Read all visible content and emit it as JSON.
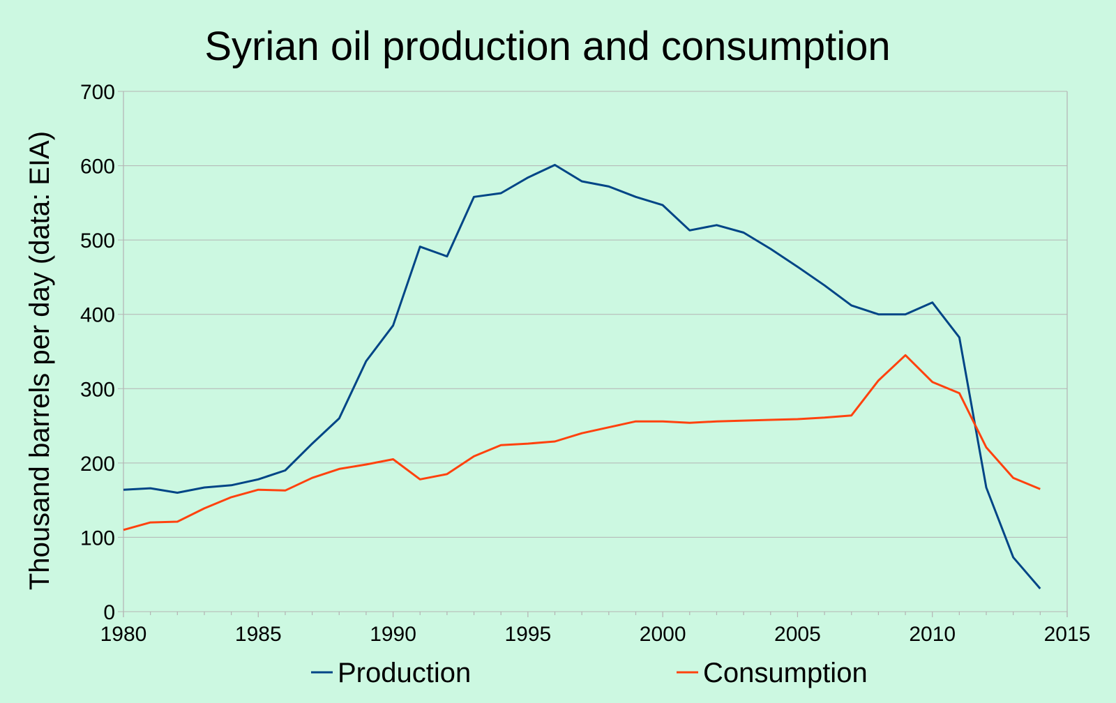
{
  "chart_data": {
    "type": "line",
    "title": "Syrian oil production and consumption",
    "xlabel": "",
    "ylabel": "Thousand barrels per day (data: EIA)",
    "xlim": [
      1980,
      2015
    ],
    "ylim": [
      0,
      700
    ],
    "x_ticks": [
      "1980",
      "1985",
      "1990",
      "1995",
      "2000",
      "2005",
      "2010",
      "2015"
    ],
    "y_ticks": [
      "0",
      "100",
      "200",
      "300",
      "400",
      "500",
      "600",
      "700"
    ],
    "grid": true,
    "legend_position": "bottom",
    "x": [
      1980,
      1981,
      1982,
      1983,
      1984,
      1985,
      1986,
      1987,
      1988,
      1989,
      1990,
      1991,
      1992,
      1993,
      1994,
      1995,
      1996,
      1997,
      1998,
      1999,
      2000,
      2001,
      2002,
      2003,
      2004,
      2005,
      2006,
      2007,
      2008,
      2009,
      2010,
      2011,
      2012,
      2013,
      2014
    ],
    "series": [
      {
        "name": "Production",
        "color": "#004586",
        "values": [
          164,
          166,
          160,
          167,
          170,
          178,
          190,
          226,
          260,
          337,
          385,
          491,
          478,
          558,
          563,
          584,
          601,
          579,
          572,
          558,
          547,
          513,
          520,
          510,
          488,
          464,
          439,
          412,
          400,
          400,
          416,
          369,
          167,
          73,
          31
        ]
      },
      {
        "name": "Consumption",
        "color": "#ff420e",
        "values": [
          110,
          120,
          121,
          139,
          154,
          164,
          163,
          180,
          192,
          198,
          205,
          178,
          185,
          209,
          224,
          226,
          229,
          240,
          248,
          256,
          256,
          254,
          256,
          257,
          258,
          259,
          261,
          264,
          311,
          345,
          309,
          294,
          221,
          180,
          165
        ]
      }
    ]
  }
}
